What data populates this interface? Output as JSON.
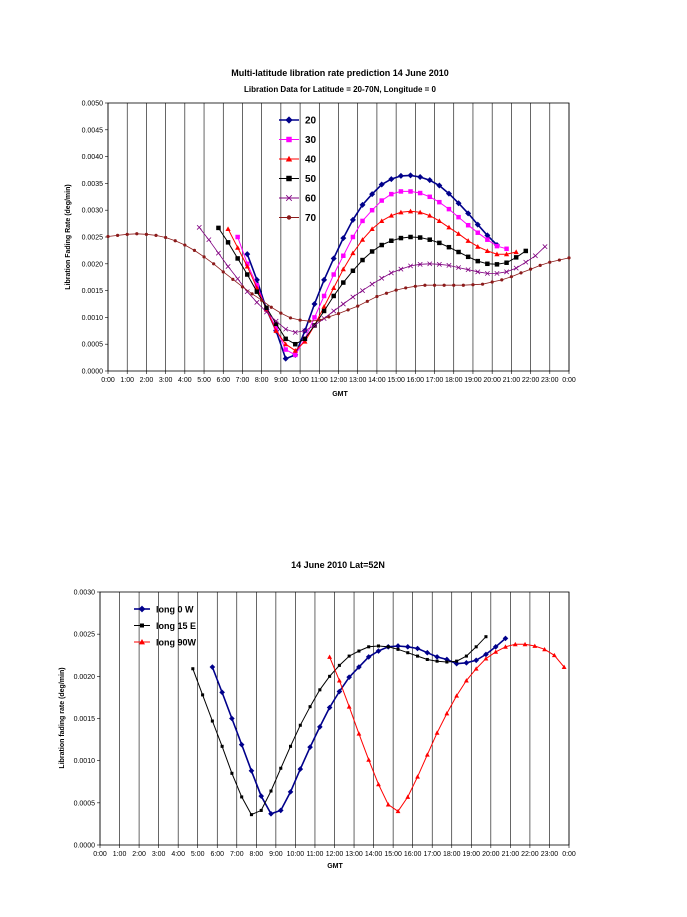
{
  "chart_data": [
    {
      "type": "line",
      "title": "Multi-latitude libration rate prediction 14 June 2010",
      "subtitle": "Libration  Data for Latitude = 20-70N, Longitude = 0",
      "xlabel": "GMT",
      "ylabel": "Libration Fading Rate (deg/min)",
      "xlim": [
        0,
        24
      ],
      "ylim": [
        0,
        0.005
      ],
      "x_ticks": [
        "0:00",
        "1:00",
        "2:00",
        "3:00",
        "4:00",
        "5:00",
        "6:00",
        "7:00",
        "8:00",
        "9:00",
        "10:00",
        "11:00",
        "12:00",
        "13:00",
        "14:00",
        "15:00",
        "16:00",
        "17:00",
        "18:00",
        "19:00",
        "20:00",
        "21:00",
        "22:00",
        "23:00",
        "0:00"
      ],
      "y_ticks": [
        "0.0000",
        "0.0005",
        "0.0010",
        "0.0015",
        "0.0020",
        "0.0025",
        "0.0030",
        "0.0035",
        "0.0040",
        "0.0045",
        "0.0050"
      ],
      "y_tick_values": [
        0,
        0.0005,
        0.001,
        0.0015,
        0.002,
        0.0025,
        0.003,
        0.0035,
        0.004,
        0.0045,
        0.005
      ],
      "grid": "vertical",
      "legend": "top-left inside plot",
      "series": [
        {
          "name": "20",
          "color": "#00008B",
          "marker": "diamond",
          "x": [
            7.25,
            7.75,
            8.25,
            8.75,
            9.25,
            9.75,
            10.25,
            10.75,
            11.25,
            11.75,
            12.25,
            12.75,
            13.25,
            13.75,
            14.25,
            14.75,
            15.25,
            15.75,
            16.25,
            16.75,
            17.25,
            17.75,
            18.25,
            18.75,
            19.25,
            19.75,
            20.25
          ],
          "y": [
            0.00218,
            0.0017,
            0.00115,
            0.00075,
            0.00023,
            0.0003,
            0.00075,
            0.00125,
            0.0017,
            0.0021,
            0.00248,
            0.00282,
            0.0031,
            0.0033,
            0.00348,
            0.00358,
            0.00364,
            0.00365,
            0.00362,
            0.00356,
            0.00346,
            0.00331,
            0.00313,
            0.00294,
            0.00273,
            0.00253,
            0.00235
          ]
        },
        {
          "name": "30",
          "color": "#FF00FF",
          "marker": "square",
          "x": [
            6.75,
            7.25,
            7.75,
            8.25,
            8.75,
            9.25,
            9.75,
            10.25,
            10.75,
            11.25,
            11.75,
            12.25,
            12.75,
            13.25,
            13.75,
            14.25,
            14.75,
            15.25,
            15.75,
            16.25,
            16.75,
            17.25,
            17.75,
            18.25,
            18.75,
            19.25,
            19.75,
            20.25,
            20.75
          ],
          "y": [
            0.0025,
            0.002,
            0.0016,
            0.00115,
            0.0008,
            0.0004,
            0.0003,
            0.0006,
            0.001,
            0.0014,
            0.0018,
            0.00215,
            0.0025,
            0.0028,
            0.003,
            0.00318,
            0.0033,
            0.00335,
            0.00335,
            0.00332,
            0.00325,
            0.00315,
            0.00302,
            0.00287,
            0.00272,
            0.00258,
            0.00245,
            0.00233,
            0.00228
          ]
        },
        {
          "name": "40",
          "color": "#FF0000",
          "marker": "triangle",
          "x": [
            6.25,
            6.75,
            7.25,
            7.75,
            8.25,
            8.75,
            9.25,
            9.75,
            10.25,
            10.75,
            11.25,
            11.75,
            12.25,
            12.75,
            13.25,
            13.75,
            14.25,
            14.75,
            15.25,
            15.75,
            16.25,
            16.75,
            17.25,
            17.75,
            18.25,
            18.75,
            19.25,
            19.75,
            20.25,
            20.75,
            21.25
          ],
          "y": [
            0.00265,
            0.0023,
            0.00195,
            0.00155,
            0.00115,
            0.00075,
            0.0005,
            0.00038,
            0.00055,
            0.00085,
            0.0012,
            0.00155,
            0.0019,
            0.0022,
            0.00245,
            0.00265,
            0.0028,
            0.0029,
            0.00296,
            0.00298,
            0.00296,
            0.0029,
            0.0028,
            0.00268,
            0.00256,
            0.00243,
            0.00232,
            0.00224,
            0.00218,
            0.00218,
            0.00222
          ]
        },
        {
          "name": "50",
          "color": "#000000",
          "marker": "square",
          "x": [
            5.75,
            6.25,
            6.75,
            7.25,
            7.75,
            8.25,
            8.75,
            9.25,
            9.75,
            10.25,
            10.75,
            11.25,
            11.75,
            12.25,
            12.75,
            13.25,
            13.75,
            14.25,
            14.75,
            15.25,
            15.75,
            16.25,
            16.75,
            17.25,
            17.75,
            18.25,
            18.75,
            19.25,
            19.75,
            20.25,
            20.75,
            21.25,
            21.75
          ],
          "y": [
            0.00267,
            0.0024,
            0.0021,
            0.0018,
            0.00148,
            0.00118,
            0.00088,
            0.0006,
            0.0005,
            0.0006,
            0.00085,
            0.00112,
            0.0014,
            0.00165,
            0.00187,
            0.00207,
            0.00223,
            0.00235,
            0.00243,
            0.00248,
            0.0025,
            0.00249,
            0.00245,
            0.00239,
            0.00231,
            0.00222,
            0.00213,
            0.00205,
            0.002,
            0.00199,
            0.00202,
            0.00212,
            0.00224
          ]
        },
        {
          "name": "60",
          "color": "#800080",
          "marker": "cross",
          "x": [
            4.75,
            5.25,
            5.75,
            6.25,
            6.75,
            7.25,
            7.75,
            8.25,
            8.75,
            9.25,
            9.75,
            10.25,
            10.75,
            11.25,
            11.75,
            12.25,
            12.75,
            13.25,
            13.75,
            14.25,
            14.75,
            15.25,
            15.75,
            16.25,
            16.75,
            17.25,
            17.75,
            18.25,
            18.75,
            19.25,
            19.75,
            20.25,
            20.75,
            21.25,
            21.75,
            22.25,
            22.75
          ],
          "y": [
            0.00268,
            0.00245,
            0.0022,
            0.00195,
            0.00172,
            0.00148,
            0.00128,
            0.0011,
            0.00093,
            0.00078,
            0.00072,
            0.00075,
            0.00085,
            0.00098,
            0.00112,
            0.00125,
            0.00138,
            0.0015,
            0.00162,
            0.00173,
            0.00183,
            0.0019,
            0.00196,
            0.00199,
            0.002,
            0.00199,
            0.00197,
            0.00193,
            0.00189,
            0.00185,
            0.00182,
            0.00182,
            0.00185,
            0.00192,
            0.00203,
            0.00215,
            0.00232
          ]
        }
      ],
      "series_70": {
        "name": "70",
        "color": "#8B1A1A",
        "marker": "dot",
        "x": [
          0,
          0.5,
          1,
          1.5,
          2,
          2.5,
          3,
          3.5,
          4,
          4.5,
          5,
          5.5,
          6,
          6.5,
          7,
          7.5,
          8,
          8.5,
          9,
          9.5,
          10,
          10.5,
          11,
          11.5,
          12,
          12.5,
          13,
          13.5,
          14,
          14.5,
          15,
          15.5,
          16,
          16.5,
          17,
          17.5,
          18,
          18.5,
          19,
          19.5,
          20,
          20.5,
          21,
          21.5,
          22,
          22.5,
          23,
          23.5,
          24
        ],
        "y": [
          0.00251,
          0.00253,
          0.00255,
          0.00256,
          0.00255,
          0.00253,
          0.00249,
          0.00243,
          0.00235,
          0.00225,
          0.00213,
          0.002,
          0.00185,
          0.00171,
          0.00157,
          0.00144,
          0.00132,
          0.00119,
          0.00108,
          0.00099,
          0.00095,
          0.00093,
          0.00095,
          0.00101,
          0.00107,
          0.00114,
          0.00121,
          0.0013,
          0.00139,
          0.00145,
          0.00151,
          0.00155,
          0.00158,
          0.0016,
          0.0016,
          0.0016,
          0.0016,
          0.0016,
          0.00161,
          0.00162,
          0.00166,
          0.0017,
          0.00176,
          0.00183,
          0.0019,
          0.00197,
          0.00203,
          0.00207,
          0.00211
        ]
      }
    },
    {
      "type": "line",
      "title": "14 June  2010 Lat=52N",
      "xlabel": "GMT",
      "ylabel": "Libration fading rate (deg/min)",
      "xlim": [
        0,
        24
      ],
      "ylim": [
        0,
        0.003
      ],
      "x_ticks": [
        "0:00",
        "1:00",
        "2:00",
        "3:00",
        "4:00",
        "5:00",
        "6:00",
        "7:00",
        "8:00",
        "9:00",
        "10:00",
        "11:00",
        "12:00",
        "13:00",
        "14:00",
        "15:00",
        "16:00",
        "17:00",
        "18:00",
        "19:00",
        "20:00",
        "21:00",
        "22:00",
        "23:00",
        "0:00"
      ],
      "y_ticks": [
        "0.0000",
        "0.0005",
        "0.0010",
        "0.0015",
        "0.0020",
        "0.0025",
        "0.0030"
      ],
      "y_tick_values": [
        0,
        0.0005,
        0.001,
        0.0015,
        0.002,
        0.0025,
        0.003
      ],
      "grid": "vertical",
      "legend": "top-left inside plot",
      "series": [
        {
          "name": "long 0 W",
          "color": "#00008B",
          "marker": "diamond",
          "x": [
            5.75,
            6.25,
            6.75,
            7.25,
            7.75,
            8.25,
            8.75,
            9.25,
            9.75,
            10.25,
            10.75,
            11.25,
            11.75,
            12.25,
            12.75,
            13.25,
            13.75,
            14.25,
            14.75,
            15.25,
            15.75,
            16.25,
            16.75,
            17.25,
            17.75,
            18.25,
            18.75,
            19.25,
            19.75,
            20.25,
            20.75
          ],
          "y": [
            0.00211,
            0.00181,
            0.0015,
            0.00119,
            0.00088,
            0.00058,
            0.00037,
            0.00041,
            0.00063,
            0.0009,
            0.00116,
            0.0014,
            0.00163,
            0.00182,
            0.00199,
            0.00211,
            0.00223,
            0.0023,
            0.00235,
            0.00236,
            0.00235,
            0.00233,
            0.00228,
            0.00223,
            0.0022,
            0.00215,
            0.00216,
            0.00219,
            0.00226,
            0.00235,
            0.00245
          ]
        },
        {
          "name": "long 15 E",
          "color": "#000000",
          "marker": "square",
          "x": [
            4.75,
            5.25,
            5.75,
            6.25,
            6.75,
            7.25,
            7.75,
            8.25,
            8.75,
            9.25,
            9.75,
            10.25,
            10.75,
            11.25,
            11.75,
            12.25,
            12.75,
            13.25,
            13.75,
            14.25,
            14.75,
            15.25,
            15.75,
            16.25,
            16.75,
            17.25,
            17.75,
            18.25,
            18.75,
            19.25,
            19.75
          ],
          "y": [
            0.00209,
            0.00178,
            0.00147,
            0.00117,
            0.00085,
            0.00057,
            0.00036,
            0.00041,
            0.00064,
            0.00091,
            0.00117,
            0.00142,
            0.00164,
            0.00184,
            0.002,
            0.00213,
            0.00224,
            0.0023,
            0.00235,
            0.00236,
            0.00235,
            0.00232,
            0.00228,
            0.00224,
            0.0022,
            0.00218,
            0.00217,
            0.00218,
            0.00224,
            0.00235,
            0.00247
          ]
        },
        {
          "name": "long 90W",
          "color": "#FF0000",
          "marker": "triangle",
          "x": [
            11.75,
            12.25,
            12.75,
            13.25,
            13.75,
            14.25,
            14.75,
            15.25,
            15.75,
            16.25,
            16.75,
            17.25,
            17.75,
            18.25,
            18.75,
            19.25,
            19.75,
            20.25,
            20.75,
            21.25,
            21.75,
            22.25,
            22.75,
            23.25,
            23.75
          ],
          "y": [
            0.00223,
            0.00195,
            0.00164,
            0.00132,
            0.00101,
            0.00072,
            0.00048,
            0.0004,
            0.00057,
            0.00081,
            0.00107,
            0.00133,
            0.00156,
            0.00177,
            0.00195,
            0.00209,
            0.00221,
            0.00229,
            0.00235,
            0.00238,
            0.00238,
            0.00236,
            0.00232,
            0.00225,
            0.00211
          ]
        }
      ]
    }
  ]
}
